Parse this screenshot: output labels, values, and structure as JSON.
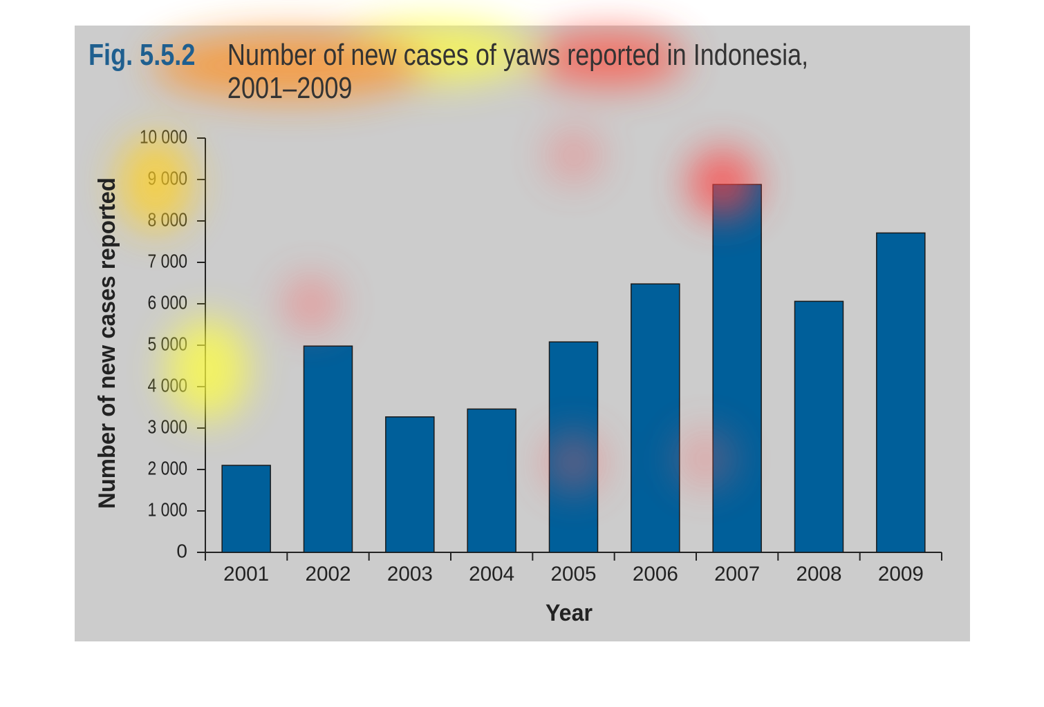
{
  "chart_data": {
    "type": "bar",
    "figure_label": "Fig. 5.5.2",
    "title": "Number of new cases of yaws reported in Indonesia, 2001–2009",
    "x_label": "Year",
    "y_label": "Number of new cases reported",
    "categories": [
      "2001",
      "2002",
      "2003",
      "2004",
      "2005",
      "2006",
      "2007",
      "2008",
      "2009"
    ],
    "values": [
      2100,
      4980,
      3270,
      3460,
      5080,
      6480,
      8880,
      6060,
      7710
    ],
    "color": "#005f9a",
    "ylim": [
      0,
      10000
    ],
    "yticks": [
      0,
      {
        "value": 1000,
        "label": "1 000"
      },
      {
        "value": 2000,
        "label": "2 000"
      },
      {
        "value": 3000,
        "label": "3 000"
      },
      {
        "value": 4000,
        "label": "4 000"
      },
      {
        "value": 5000,
        "label": "5 000"
      },
      {
        "value": 6000,
        "label": "6 000"
      },
      {
        "value": 7000,
        "label": "7 000"
      },
      {
        "value": 8000,
        "label": "8 000"
      },
      {
        "value": 9000,
        "label": "9 000"
      },
      {
        "value": 10000,
        "label": "10 000"
      }
    ],
    "grid": false
  }
}
